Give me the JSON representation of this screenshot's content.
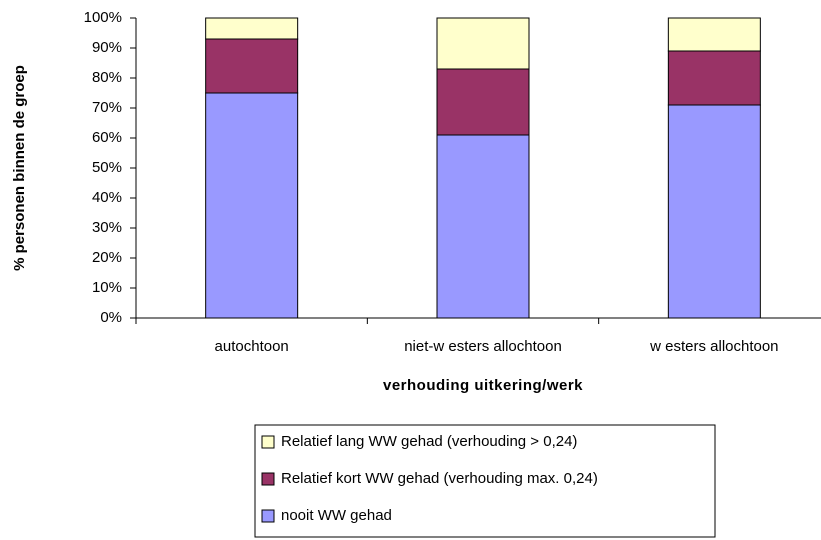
{
  "chart_data": {
    "type": "stacked-bar",
    "y_axis_label": "% personen binnen de groep",
    "x_axis_label": "verhouding uitkering/werk",
    "categories": [
      "autochtoon",
      "niet-w esters allochtoon",
      "w esters allochtoon"
    ],
    "series": [
      {
        "name": "nooit WW gehad",
        "color": "#9999ff",
        "values": [
          75,
          61,
          71
        ]
      },
      {
        "name": "Relatief kort WW gehad (verhouding max. 0,24)",
        "color": "#993366",
        "values": [
          18,
          22,
          18
        ]
      },
      {
        "name": "Relatief lang WW gehad (verhouding > 0,24)",
        "color": "#ffffcc",
        "values": [
          7,
          17,
          11
        ]
      }
    ],
    "ylim": [
      0,
      100
    ],
    "yticks": [
      {
        "value": 0,
        "label": "0%"
      },
      {
        "value": 10,
        "label": "10%"
      },
      {
        "value": 20,
        "label": "20%"
      },
      {
        "value": 30,
        "label": "30%"
      },
      {
        "value": 40,
        "label": "40%"
      },
      {
        "value": 50,
        "label": "50%"
      },
      {
        "value": 60,
        "label": "60%"
      },
      {
        "value": 70,
        "label": "70%"
      },
      {
        "value": 80,
        "label": "80%"
      },
      {
        "value": 90,
        "label": "90%"
      },
      {
        "value": 100,
        "label": "100%"
      }
    ],
    "grid": false
  }
}
